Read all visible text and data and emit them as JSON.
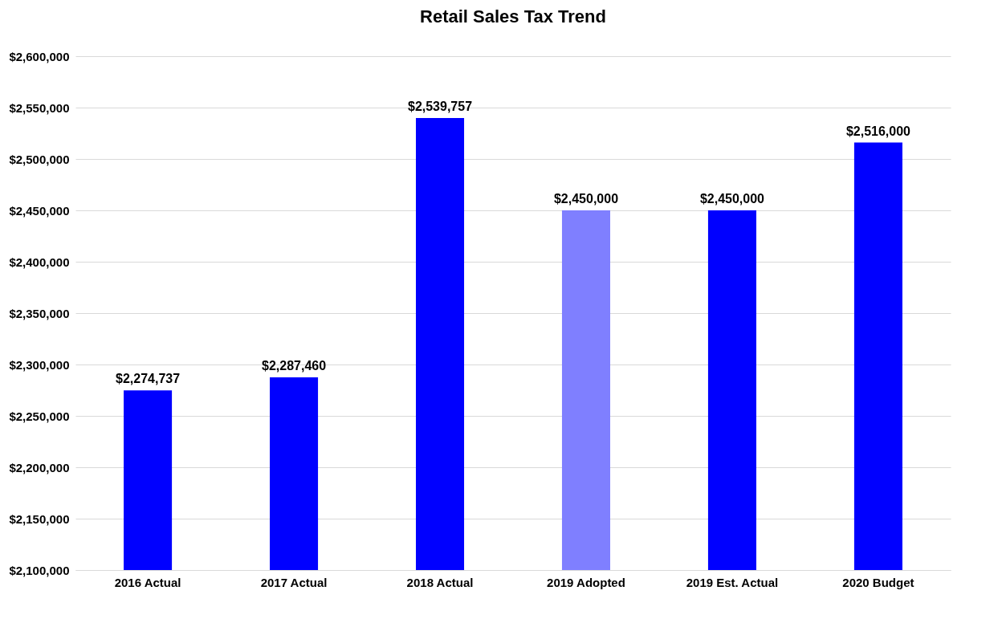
{
  "chart_data": {
    "type": "bar",
    "title": "Retail Sales Tax Trend",
    "categories": [
      "2016 Actual",
      "2017 Actual",
      "2018 Actual",
      "2019 Adopted",
      "2019 Est. Actual",
      "2020 Budget"
    ],
    "values": [
      2274737,
      2287460,
      2539757,
      2450000,
      2450000,
      2516000
    ],
    "value_labels": [
      "$2,274,737",
      "$2,287,460",
      "$2,539,757",
      "$2,450,000",
      "$2,450,000",
      "$2,516,000"
    ],
    "colors": [
      "#0000ff",
      "#0000ff",
      "#0000ff",
      "#7f7fff",
      "#0000ff",
      "#0000ff"
    ],
    "ylim": [
      2100000,
      2600000
    ],
    "yticks": [
      {
        "value": 2100000,
        "label": "$2,100,000"
      },
      {
        "value": 2150000,
        "label": "$2,150,000"
      },
      {
        "value": 2200000,
        "label": "$2,200,000"
      },
      {
        "value": 2250000,
        "label": "$2,250,000"
      },
      {
        "value": 2300000,
        "label": "$2,300,000"
      },
      {
        "value": 2350000,
        "label": "$2,350,000"
      },
      {
        "value": 2400000,
        "label": "$2,400,000"
      },
      {
        "value": 2450000,
        "label": "$2,450,000"
      },
      {
        "value": 2500000,
        "label": "$2,500,000"
      },
      {
        "value": 2550000,
        "label": "$2,550,000"
      },
      {
        "value": 2600000,
        "label": "$2,600,000"
      }
    ],
    "grid": "y",
    "legend": false
  }
}
